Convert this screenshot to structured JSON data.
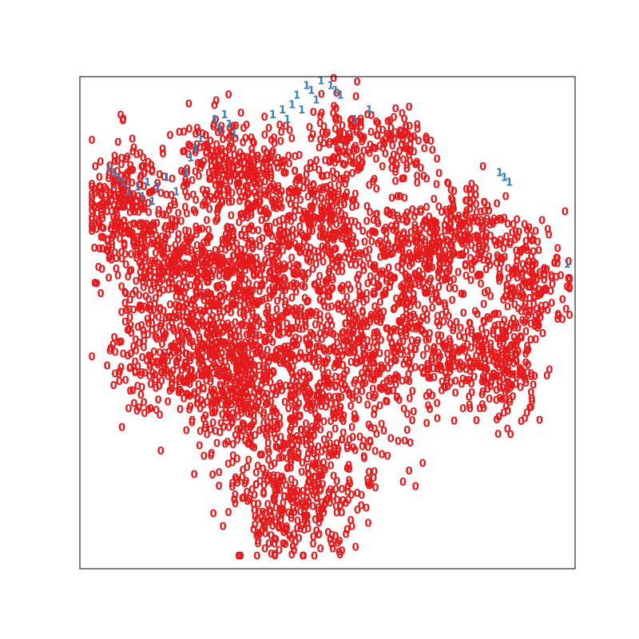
{
  "chart_data": {
    "type": "scatter",
    "title": "",
    "xlabel": "",
    "ylabel": "",
    "xlim": [
      0,
      1
    ],
    "ylim": [
      0,
      1
    ],
    "axes_ticks": false,
    "grid": false,
    "legend": "none",
    "marker_style": "text-glyph",
    "series": [
      {
        "glyph": "0",
        "color": "#e41a1c",
        "clusters": [
          {
            "cx": 0.07,
            "cy": 0.73,
            "sx": 0.04,
            "sy": 0.07,
            "n": 260
          },
          {
            "cx": 0.17,
            "cy": 0.62,
            "sx": 0.06,
            "sy": 0.06,
            "n": 260
          },
          {
            "cx": 0.16,
            "cy": 0.42,
            "sx": 0.06,
            "sy": 0.06,
            "n": 240
          },
          {
            "cx": 0.27,
            "cy": 0.82,
            "sx": 0.05,
            "sy": 0.05,
            "n": 170
          },
          {
            "cx": 0.36,
            "cy": 0.78,
            "sx": 0.05,
            "sy": 0.05,
            "n": 170
          },
          {
            "cx": 0.32,
            "cy": 0.62,
            "sx": 0.07,
            "sy": 0.06,
            "n": 280
          },
          {
            "cx": 0.49,
            "cy": 0.68,
            "sx": 0.06,
            "sy": 0.07,
            "n": 300
          },
          {
            "cx": 0.53,
            "cy": 0.87,
            "sx": 0.04,
            "sy": 0.05,
            "n": 110
          },
          {
            "cx": 0.65,
            "cy": 0.85,
            "sx": 0.03,
            "sy": 0.04,
            "n": 80
          },
          {
            "cx": 0.66,
            "cy": 0.62,
            "sx": 0.06,
            "sy": 0.06,
            "n": 260
          },
          {
            "cx": 0.79,
            "cy": 0.67,
            "sx": 0.05,
            "sy": 0.05,
            "n": 200
          },
          {
            "cx": 0.91,
            "cy": 0.58,
            "sx": 0.04,
            "sy": 0.05,
            "n": 170
          },
          {
            "cx": 0.77,
            "cy": 0.42,
            "sx": 0.07,
            "sy": 0.06,
            "n": 260
          },
          {
            "cx": 0.57,
            "cy": 0.45,
            "sx": 0.07,
            "sy": 0.07,
            "n": 320
          },
          {
            "cx": 0.36,
            "cy": 0.45,
            "sx": 0.07,
            "sy": 0.07,
            "n": 320
          },
          {
            "cx": 0.46,
            "cy": 0.27,
            "sx": 0.09,
            "sy": 0.08,
            "n": 380
          },
          {
            "cx": 0.42,
            "cy": 0.1,
            "sx": 0.07,
            "sy": 0.05,
            "n": 220
          },
          {
            "cx": 0.3,
            "cy": 0.33,
            "sx": 0.05,
            "sy": 0.06,
            "n": 160
          },
          {
            "cx": 0.26,
            "cy": 0.46,
            "sx": 0.05,
            "sy": 0.06,
            "n": 150
          },
          {
            "cx": 0.87,
            "cy": 0.4,
            "sx": 0.03,
            "sy": 0.06,
            "n": 110
          }
        ]
      },
      {
        "glyph": "1",
        "color": "#377eb8",
        "points": [
          [
            0.05,
            0.8
          ],
          [
            0.06,
            0.79
          ],
          [
            0.04,
            0.81
          ],
          [
            0.07,
            0.78
          ],
          [
            0.1,
            0.77
          ],
          [
            0.12,
            0.78
          ],
          [
            0.14,
            0.77
          ],
          [
            0.13,
            0.74
          ],
          [
            0.08,
            0.76
          ],
          [
            0.16,
            0.79
          ],
          [
            0.2,
            0.8
          ],
          [
            0.21,
            0.83
          ],
          [
            0.22,
            0.85
          ],
          [
            0.23,
            0.87
          ],
          [
            0.26,
            0.91
          ],
          [
            0.28,
            0.92
          ],
          [
            0.29,
            0.9
          ],
          [
            0.27,
            0.89
          ],
          [
            0.38,
            0.92
          ],
          [
            0.4,
            0.93
          ],
          [
            0.43,
            0.96
          ],
          [
            0.45,
            0.98
          ],
          [
            0.46,
            0.97
          ],
          [
            0.48,
            0.99
          ],
          [
            0.5,
            0.98
          ],
          [
            0.51,
            0.97
          ],
          [
            0.47,
            0.95
          ],
          [
            0.42,
            0.94
          ],
          [
            0.55,
            0.91
          ],
          [
            0.58,
            0.93
          ],
          [
            0.41,
            0.91
          ],
          [
            0.86,
            0.79
          ],
          [
            0.87,
            0.78
          ],
          [
            0.85,
            0.8
          ],
          [
            0.99,
            0.61
          ],
          [
            0.44,
            0.93
          ],
          [
            0.52,
            0.96
          ],
          [
            0.3,
            0.88
          ],
          [
            0.18,
            0.76
          ],
          [
            0.11,
            0.75
          ]
        ]
      }
    ]
  }
}
